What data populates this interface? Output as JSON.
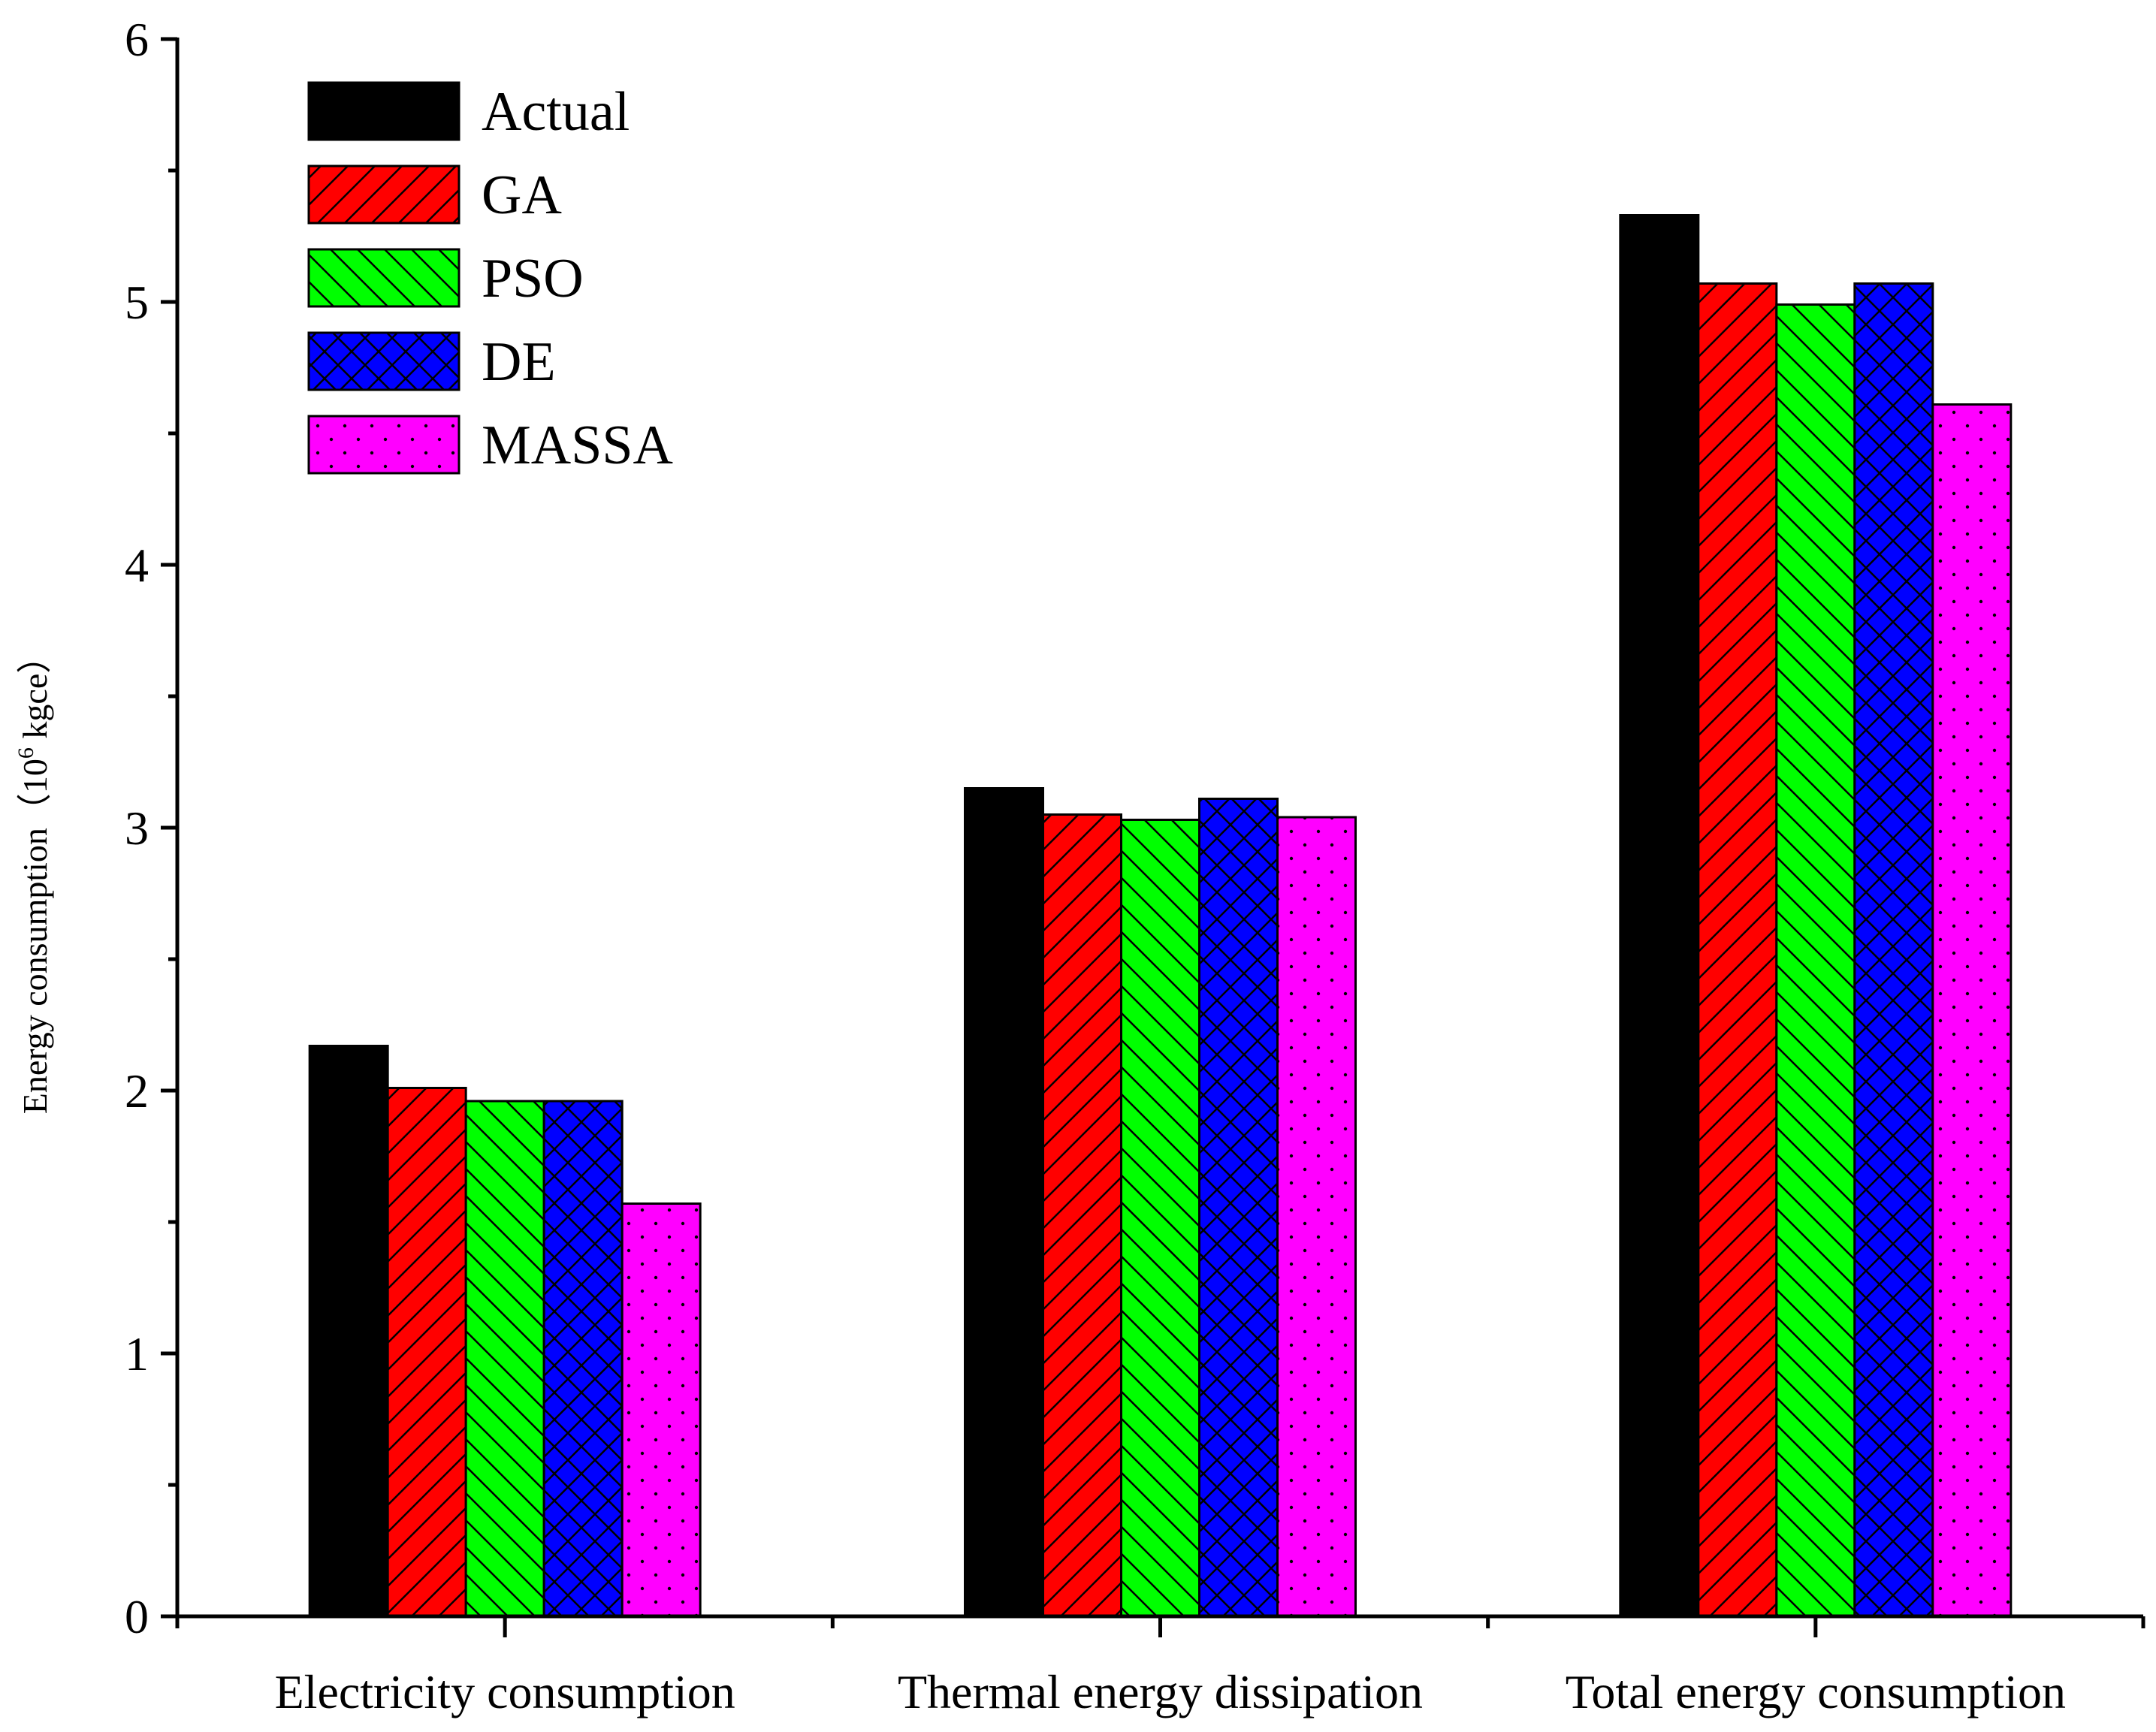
{
  "chart_data": {
    "type": "bar",
    "title": "",
    "xlabel": "",
    "ylabel": "Energy consumption（",
    "ylabel_unit_base": "10",
    "ylabel_unit_exp": "6",
    "ylabel_unit_tail": " kgce）",
    "ylim": [
      0,
      6
    ],
    "yticks": [
      "0",
      "1",
      "2",
      "3",
      "4",
      "5",
      "6"
    ],
    "categories": [
      "Electricity consumption",
      "Thermal energy dissipation",
      "Total energy consumption"
    ],
    "legend_position": "top-left",
    "series": [
      {
        "name": "Actual",
        "values": [
          2.17,
          3.15,
          5.33
        ],
        "color": "#000000",
        "pattern": "solid"
      },
      {
        "name": "GA",
        "values": [
          2.01,
          3.05,
          5.07
        ],
        "color": "#ff0000",
        "pattern": "forward-diagonal"
      },
      {
        "name": "PSO",
        "values": [
          1.96,
          3.03,
          4.99
        ],
        "color": "#00ff00",
        "pattern": "backward-diagonal"
      },
      {
        "name": "DE",
        "values": [
          1.96,
          3.11,
          5.07
        ],
        "color": "#0000ff",
        "pattern": "crosshatch"
      },
      {
        "name": "MASSA",
        "values": [
          1.57,
          3.04,
          4.61
        ],
        "color": "#ff00ff",
        "pattern": "dots"
      }
    ]
  }
}
